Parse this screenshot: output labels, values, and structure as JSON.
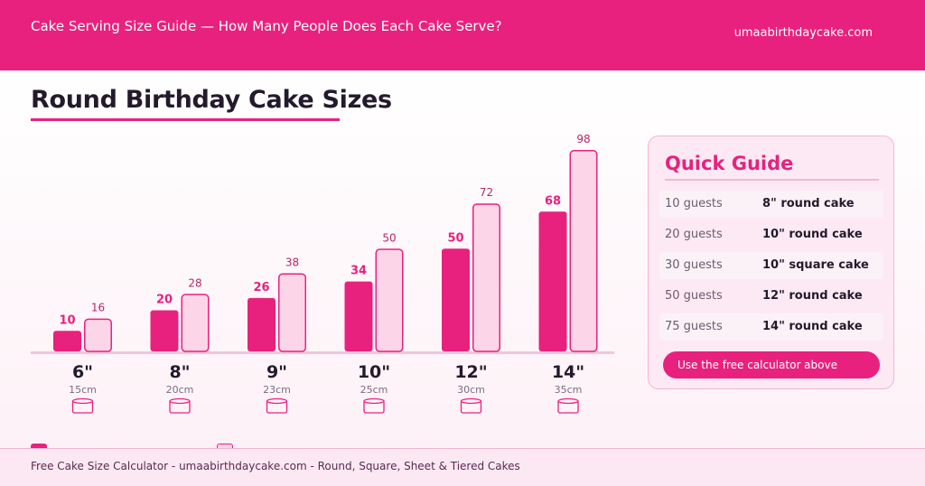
{
  "header": {
    "title": "Cake Serving Size Guide — How Many People Does Each Cake Serve?",
    "site": "umaabirthdaycake.com"
  },
  "section_title": "Round Birthday Cake Sizes",
  "chart_data": {
    "type": "bar",
    "categories": [
      "6\"",
      "8\"",
      "9\"",
      "10\"",
      "12\"",
      "14\""
    ],
    "sublabels": [
      "15cm",
      "20cm",
      "23cm",
      "25cm",
      "30cm",
      "35cm"
    ],
    "series": [
      {
        "values": [
          10,
          20,
          26,
          34,
          50,
          68
        ],
        "color": "#e8217e"
      },
      {
        "values": [
          16,
          28,
          38,
          50,
          72,
          98
        ],
        "color": "#fcd6e8"
      }
    ],
    "ylim": [
      0,
      100
    ],
    "grid": false
  },
  "quick_guide": {
    "title": "Quick Guide",
    "rows": [
      {
        "guests": "10 guests",
        "cake": "8\" round cake"
      },
      {
        "guests": "20 guests",
        "cake": "10\" round cake"
      },
      {
        "guests": "30 guests",
        "cake": "10\" square cake"
      },
      {
        "guests": "50 guests",
        "cake": "12\" round cake"
      },
      {
        "guests": "75 guests",
        "cake": "14\" round cake"
      }
    ],
    "cta": "Use the free calculator above"
  },
  "footer": {
    "text": "Free Cake Size Calculator  -  umaabirthdaycake.com  -  Round, Square, Sheet & Tiered Cakes"
  },
  "colors": {
    "accent": "#e8217e",
    "light": "#fcd6e8",
    "dark_text": "#231a2c"
  }
}
